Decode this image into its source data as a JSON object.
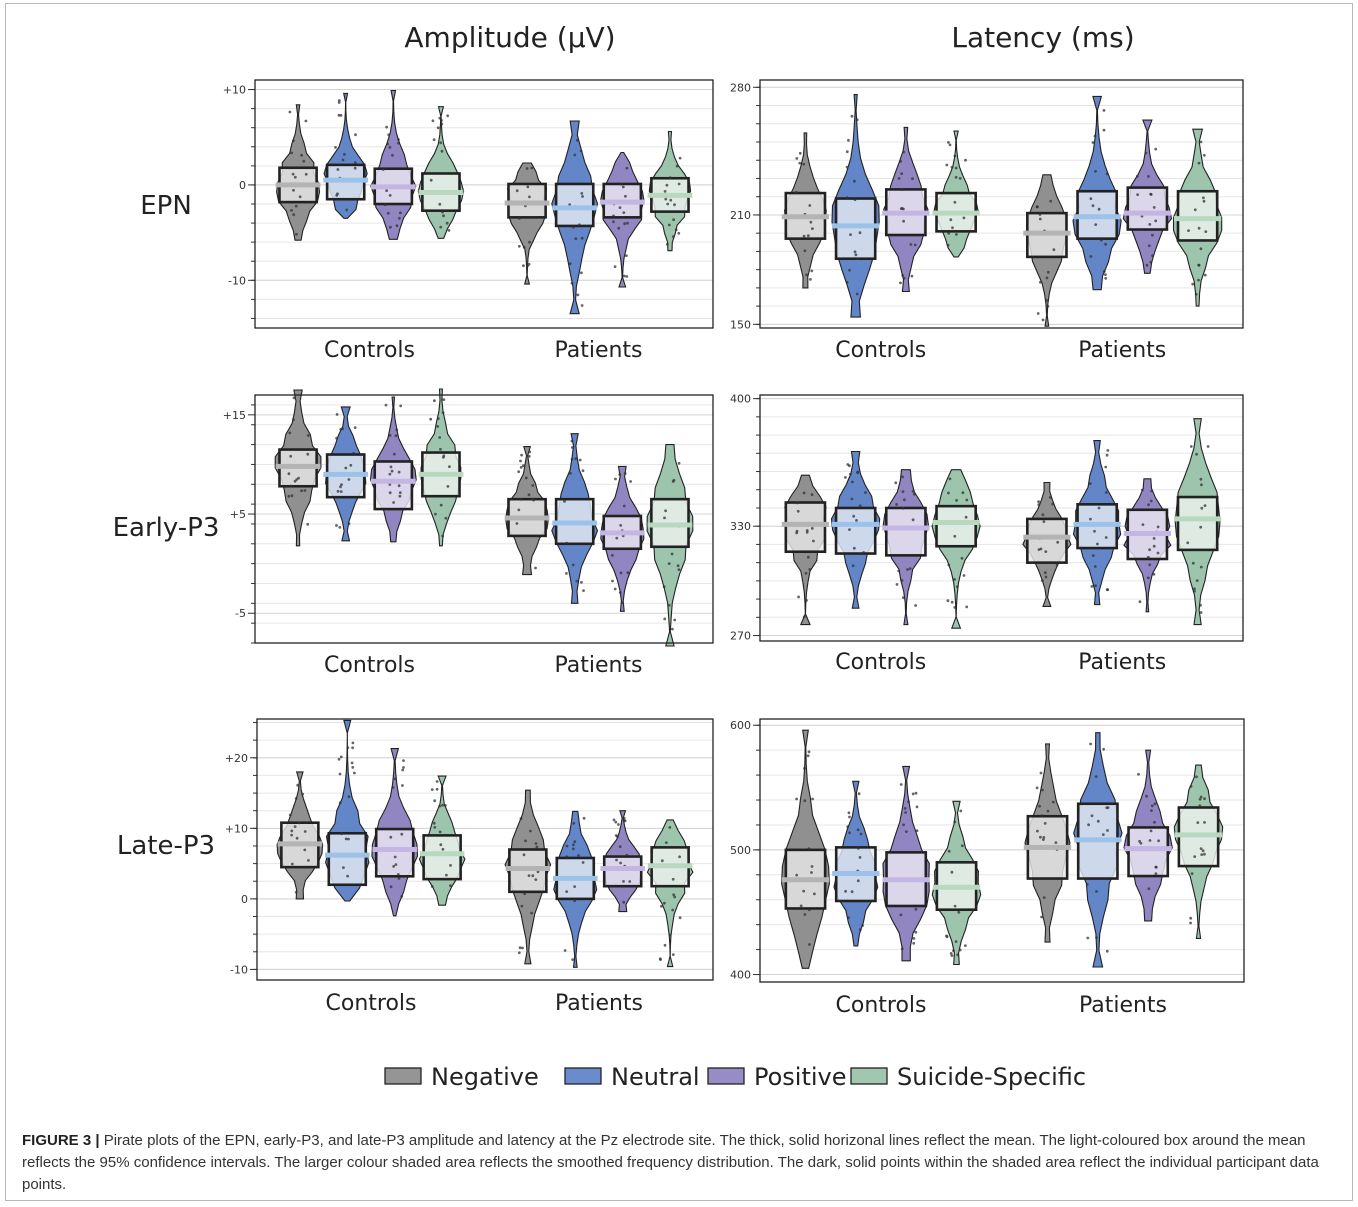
{
  "headers": {
    "amplitude": "Amplitude (μV)",
    "latency": "Latency (ms)"
  },
  "rows": [
    "EPN",
    "Early-P3",
    "Late-P3"
  ],
  "groups": [
    "Controls",
    "Patients"
  ],
  "legend": [
    {
      "label": "Negative",
      "fill": "#8a8a8a",
      "mean": "#b4b4b4",
      "light": "#e8e8e8"
    },
    {
      "label": "Neutral",
      "fill": "#5b7fc6",
      "mean": "#9cc2ea",
      "light": "#e4eaf3"
    },
    {
      "label": "Positive",
      "fill": "#8c7fbf",
      "mean": "#c4b6e2",
      "light": "#ebe8f3"
    },
    {
      "label": "Suicide-Specific",
      "fill": "#98c1a8",
      "mean": "#b9d8c0",
      "light": "#eef3ef"
    }
  ],
  "caption": {
    "label": "FIGURE 3 |",
    "text": " Pirate plots of the EPN, early-P3, and late-P3 amplitude and latency at the Pz electrode site. The thick, solid horizonal lines reflect the mean. The light-coloured box around the mean reflects the 95% confidence intervals. The larger colour shaded area reflects the smoothed frequency distribution. The dark, solid points within the shaded area reflect the individual participant data points."
  },
  "chart_data": [
    {
      "type": "pirate",
      "row": "EPN",
      "measure": "Amplitude",
      "ylim": [
        -15,
        11
      ],
      "ticks": [
        {
          "v": 10,
          "label": "+10"
        },
        {
          "v": 0,
          "label": "0"
        },
        {
          "v": -10,
          "label": "-10"
        }
      ],
      "groups": [
        {
          "name": "Controls",
          "series": [
            {
              "name": "Negative",
              "mean": 0,
              "ci": [
                -1.8,
                1.8
              ],
              "range": [
                -5.8,
                8.4
              ]
            },
            {
              "name": "Neutral",
              "mean": 0.5,
              "ci": [
                -1.5,
                2.1
              ],
              "range": [
                -3.5,
                9.6
              ]
            },
            {
              "name": "Positive",
              "mean": -0.2,
              "ci": [
                -2.0,
                1.7
              ],
              "range": [
                -5.7,
                9.9
              ]
            },
            {
              "name": "Suicide-Specific",
              "mean": -0.8,
              "ci": [
                -2.7,
                1.2
              ],
              "range": [
                -5.6,
                8.2
              ]
            }
          ]
        },
        {
          "name": "Patients",
          "series": [
            {
              "name": "Negative",
              "mean": -1.9,
              "ci": [
                -3.4,
                0.1
              ],
              "range": [
                -10.4,
                2.3
              ]
            },
            {
              "name": "Neutral",
              "mean": -2.4,
              "ci": [
                -4.3,
                0.1
              ],
              "range": [
                -13.5,
                6.7
              ]
            },
            {
              "name": "Positive",
              "mean": -1.8,
              "ci": [
                -3.4,
                0.1
              ],
              "range": [
                -10.7,
                3.4
              ]
            },
            {
              "name": "Suicide-Specific",
              "mean": -1.1,
              "ci": [
                -2.8,
                0.7
              ],
              "range": [
                -6.9,
                5.6
              ]
            }
          ]
        }
      ]
    },
    {
      "type": "pirate",
      "row": "EPN",
      "measure": "Latency",
      "ylim": [
        148,
        284
      ],
      "ticks": [
        {
          "v": 280,
          "label": "280"
        },
        {
          "v": 210,
          "label": "210"
        },
        {
          "v": 150,
          "label": "150"
        }
      ],
      "groups": [
        {
          "name": "Controls",
          "series": [
            {
              "name": "Negative",
              "mean": 209,
              "ci": [
                197,
                222
              ],
              "range": [
                170,
                255
              ]
            },
            {
              "name": "Neutral",
              "mean": 204,
              "ci": [
                186,
                219
              ],
              "range": [
                154,
                276
              ]
            },
            {
              "name": "Positive",
              "mean": 211,
              "ci": [
                199,
                224
              ],
              "range": [
                168,
                258
              ]
            },
            {
              "name": "Suicide-Specific",
              "mean": 211,
              "ci": [
                201,
                222
              ],
              "range": [
                187,
                256
              ]
            }
          ]
        },
        {
          "name": "Patients",
          "series": [
            {
              "name": "Negative",
              "mean": 200,
              "ci": [
                187,
                211
              ],
              "range": [
                149,
                232
              ]
            },
            {
              "name": "Neutral",
              "mean": 209,
              "ci": [
                197,
                223
              ],
              "range": [
                169,
                275
              ]
            },
            {
              "name": "Positive",
              "mean": 211,
              "ci": [
                202,
                225
              ],
              "range": [
                178,
                262
              ]
            },
            {
              "name": "Suicide-Specific",
              "mean": 208,
              "ci": [
                196,
                223
              ],
              "range": [
                160,
                257
              ]
            }
          ]
        }
      ]
    },
    {
      "type": "pirate",
      "row": "Early-P3",
      "measure": "Amplitude",
      "ylim": [
        -8,
        17
      ],
      "ticks": [
        {
          "v": 15,
          "label": "+15"
        },
        {
          "v": 5,
          "label": "+5"
        },
        {
          "v": -5,
          "label": "-5"
        }
      ],
      "groups": [
        {
          "name": "Controls",
          "series": [
            {
              "name": "Negative",
              "mean": 9.8,
              "ci": [
                7.8,
                11.5
              ],
              "range": [
                1.8,
                17.5
              ]
            },
            {
              "name": "Neutral",
              "mean": 9.0,
              "ci": [
                6.7,
                11.0
              ],
              "range": [
                2.3,
                15.8
              ]
            },
            {
              "name": "Positive",
              "mean": 8.3,
              "ci": [
                5.5,
                10.3
              ],
              "range": [
                2.2,
                16.8
              ]
            },
            {
              "name": "Suicide-Specific",
              "mean": 9.0,
              "ci": [
                6.8,
                11.2
              ],
              "range": [
                1.8,
                17.6
              ]
            }
          ]
        },
        {
          "name": "Patients",
          "series": [
            {
              "name": "Negative",
              "mean": 4.6,
              "ci": [
                2.8,
                6.5
              ],
              "range": [
                -1.1,
                11.8
              ]
            },
            {
              "name": "Neutral",
              "mean": 4.1,
              "ci": [
                2.0,
                6.5
              ],
              "range": [
                -4.0,
                13.1
              ]
            },
            {
              "name": "Positive",
              "mean": 3.1,
              "ci": [
                1.5,
                4.8
              ],
              "range": [
                -4.8,
                9.8
              ]
            },
            {
              "name": "Suicide-Specific",
              "mean": 3.9,
              "ci": [
                1.7,
                6.5
              ],
              "range": [
                -8.3,
                12.0
              ]
            }
          ]
        }
      ]
    },
    {
      "type": "pirate",
      "row": "Early-P3",
      "measure": "Latency",
      "ylim": [
        267,
        402
      ],
      "ticks": [
        {
          "v": 400,
          "label": "400"
        },
        {
          "v": 330,
          "label": "330"
        },
        {
          "v": 270,
          "label": "270"
        }
      ],
      "groups": [
        {
          "name": "Controls",
          "series": [
            {
              "name": "Negative",
              "mean": 331,
              "ci": [
                316,
                343
              ],
              "range": [
                276,
                358
              ]
            },
            {
              "name": "Neutral",
              "mean": 331,
              "ci": [
                315,
                340
              ],
              "range": [
                285,
                371
              ]
            },
            {
              "name": "Positive",
              "mean": 329,
              "ci": [
                314,
                340
              ],
              "range": [
                276,
                361
              ]
            },
            {
              "name": "Suicide-Specific",
              "mean": 332,
              "ci": [
                319,
                341
              ],
              "range": [
                274,
                361
              ]
            }
          ]
        },
        {
          "name": "Patients",
          "series": [
            {
              "name": "Negative",
              "mean": 324,
              "ci": [
                310,
                334
              ],
              "range": [
                286,
                354
              ]
            },
            {
              "name": "Neutral",
              "mean": 331,
              "ci": [
                318,
                342
              ],
              "range": [
                287,
                377
              ]
            },
            {
              "name": "Positive",
              "mean": 326,
              "ci": [
                312,
                339
              ],
              "range": [
                283,
                356
              ]
            },
            {
              "name": "Suicide-Specific",
              "mean": 334,
              "ci": [
                317,
                346
              ],
              "range": [
                276,
                389
              ]
            }
          ]
        }
      ]
    },
    {
      "type": "pirate",
      "row": "Late-P3",
      "measure": "Amplitude",
      "ylim": [
        -11.5,
        25.5
      ],
      "ticks": [
        {
          "v": 20,
          "label": "+20"
        },
        {
          "v": 10,
          "label": "+10"
        },
        {
          "v": 0,
          "label": "0"
        },
        {
          "v": -10,
          "label": "-10"
        }
      ],
      "groups": [
        {
          "name": "Controls",
          "series": [
            {
              "name": "Negative",
              "mean": 7.8,
              "ci": [
                4.5,
                10.8
              ],
              "range": [
                0,
                18
              ]
            },
            {
              "name": "Neutral",
              "mean": 6.2,
              "ci": [
                2.0,
                9.3
              ],
              "range": [
                -0.3,
                25.3
              ]
            },
            {
              "name": "Positive",
              "mean": 7.0,
              "ci": [
                3.2,
                9.9
              ],
              "range": [
                -2.4,
                21.3
              ]
            },
            {
              "name": "Suicide-Specific",
              "mean": 6.4,
              "ci": [
                2.8,
                9.0
              ],
              "range": [
                -0.9,
                17.4
              ]
            }
          ]
        },
        {
          "name": "Patients",
          "series": [
            {
              "name": "Negative",
              "mean": 4.3,
              "ci": [
                1.0,
                7.0
              ],
              "range": [
                -9.2,
                15.4
              ]
            },
            {
              "name": "Neutral",
              "mean": 2.9,
              "ci": [
                0,
                5.8
              ],
              "range": [
                -9.7,
                12.4
              ]
            },
            {
              "name": "Positive",
              "mean": 4.3,
              "ci": [
                1.8,
                6.0
              ],
              "range": [
                -1.8,
                12.5
              ]
            },
            {
              "name": "Suicide-Specific",
              "mean": 4.7,
              "ci": [
                1.8,
                7.3
              ],
              "range": [
                -9.6,
                11.2
              ]
            }
          ]
        }
      ]
    },
    {
      "type": "pirate",
      "row": "Late-P3",
      "measure": "Latency",
      "ylim": [
        394,
        605
      ],
      "ticks": [
        {
          "v": 600,
          "label": "600"
        },
        {
          "v": 500,
          "label": "500"
        },
        {
          "v": 400,
          "label": "400"
        }
      ],
      "groups": [
        {
          "name": "Controls",
          "series": [
            {
              "name": "Negative",
              "mean": 476,
              "ci": [
                453,
                500
              ],
              "range": [
                405,
                596
              ]
            },
            {
              "name": "Neutral",
              "mean": 481,
              "ci": [
                459,
                502
              ],
              "range": [
                423,
                555
              ]
            },
            {
              "name": "Positive",
              "mean": 476,
              "ci": [
                455,
                498
              ],
              "range": [
                411,
                567
              ]
            },
            {
              "name": "Suicide-Specific",
              "mean": 470,
              "ci": [
                452,
                490
              ],
              "range": [
                408,
                539
              ]
            }
          ]
        },
        {
          "name": "Patients",
          "series": [
            {
              "name": "Negative",
              "mean": 502,
              "ci": [
                477,
                527
              ],
              "range": [
                426,
                585
              ]
            },
            {
              "name": "Neutral",
              "mean": 508,
              "ci": [
                477,
                537
              ],
              "range": [
                406,
                594
              ]
            },
            {
              "name": "Positive",
              "mean": 501,
              "ci": [
                479,
                518
              ],
              "range": [
                443,
                580
              ]
            },
            {
              "name": "Suicide-Specific",
              "mean": 512,
              "ci": [
                487,
                534
              ],
              "range": [
                429,
                568
              ]
            }
          ]
        }
      ]
    }
  ]
}
